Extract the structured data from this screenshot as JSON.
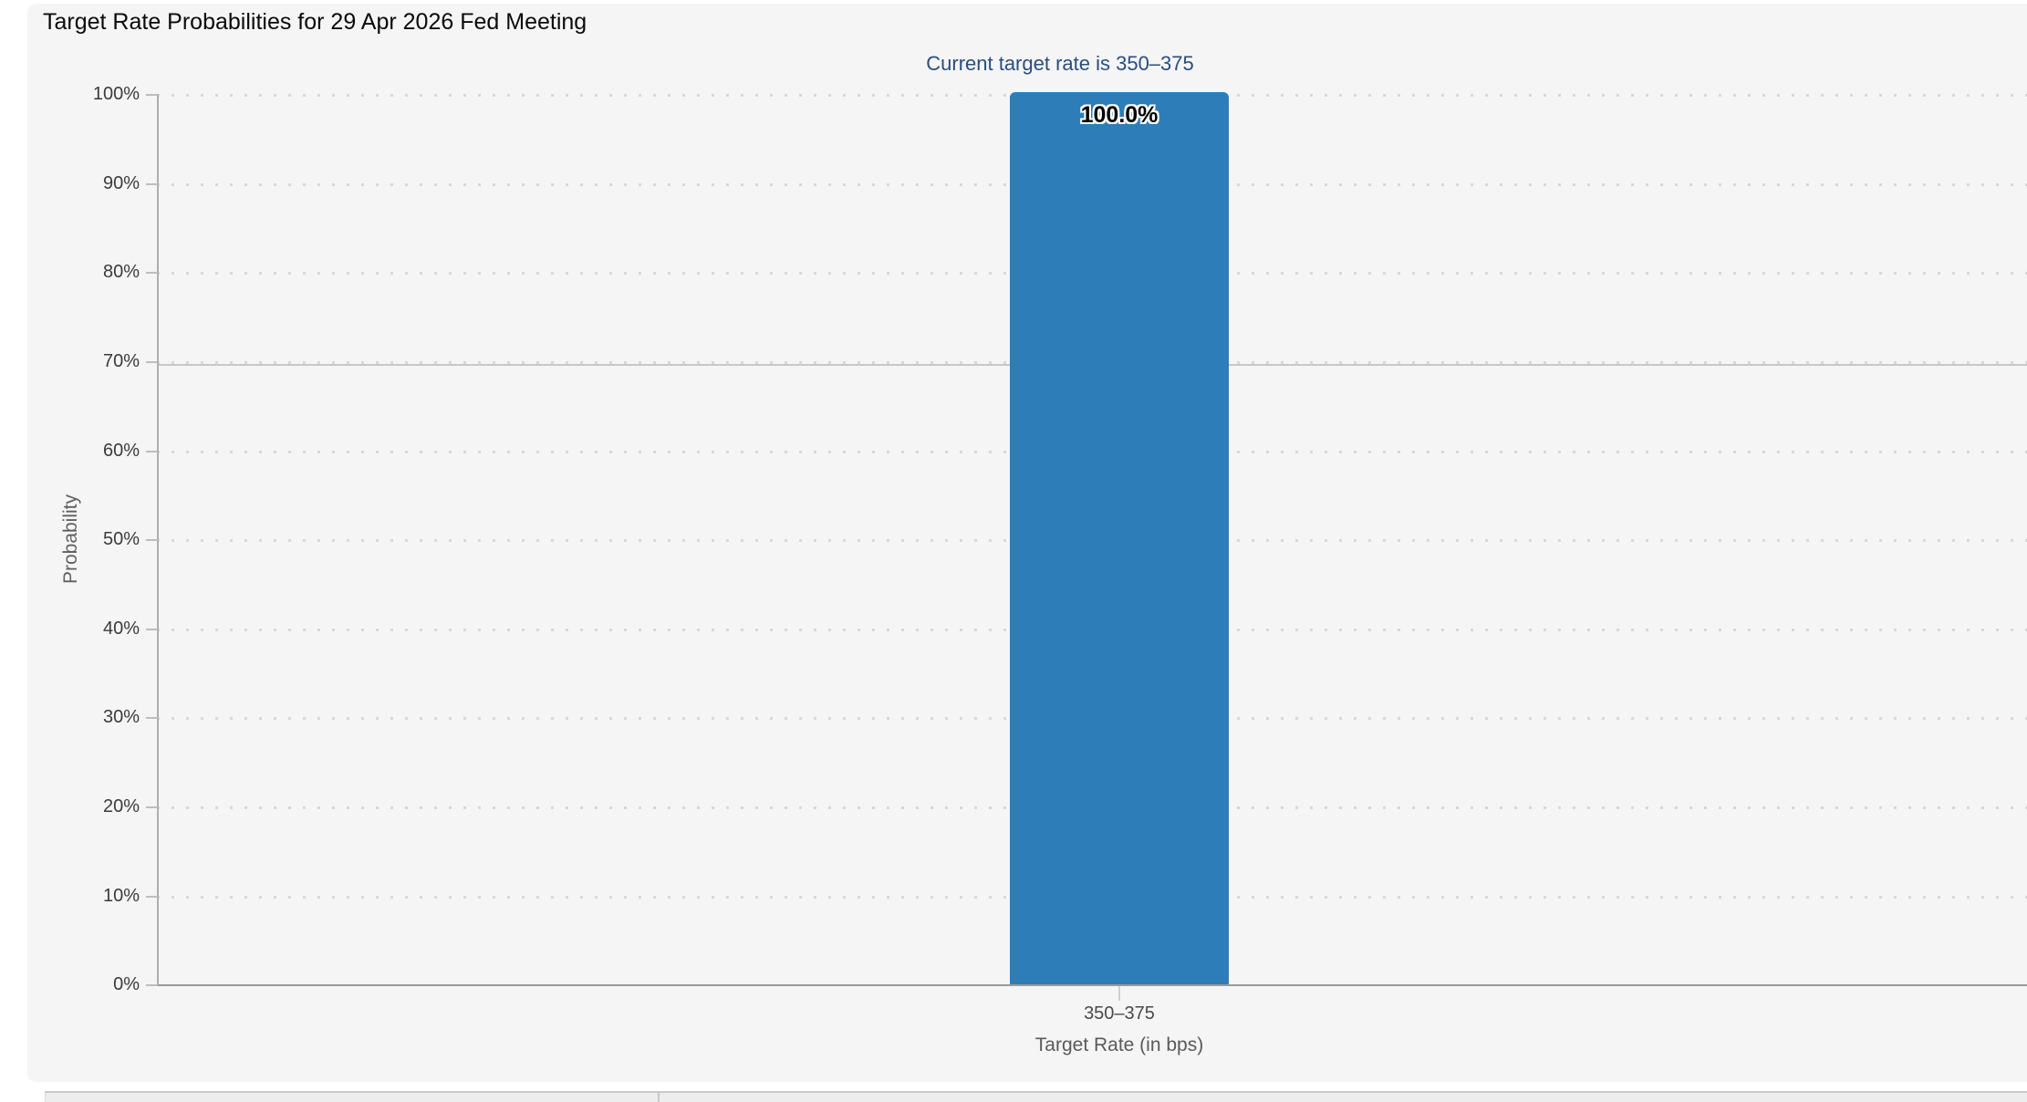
{
  "chart_data": {
    "type": "bar",
    "title": "Target Rate Probabilities for 29 Apr 2026 Fed Meeting",
    "subtitle": "Current target rate is 350–375",
    "categories": [
      "350–375"
    ],
    "values": [
      100.0
    ],
    "bar_labels": [
      "100.0%"
    ],
    "xlabel": "Target Rate (in bps)",
    "ylabel": "Probability",
    "ylim": [
      0,
      100
    ],
    "y_ticks": [
      "100%",
      "90%",
      "80%",
      "70%",
      "60%",
      "50%",
      "40%",
      "30%",
      "20%",
      "10%",
      "0%"
    ],
    "grid": "dotted horizontal gridlines at 10% steps",
    "legend": "none",
    "bar_color": "#2c7db8",
    "subtitle_color": "#2b4d7e"
  },
  "watermark": {
    "icon": "quikstrike-q-logo"
  }
}
